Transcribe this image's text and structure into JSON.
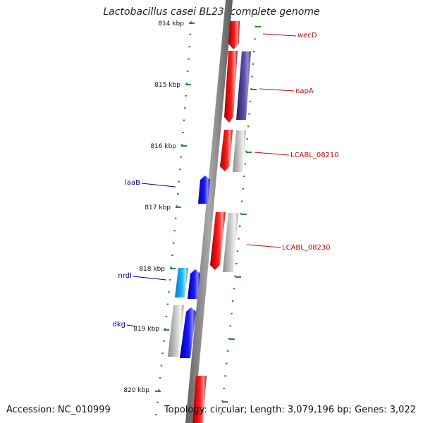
{
  "title": "Lactobacillus casei BL23, complete genome",
  "accession": "Accession: NC_010999",
  "topology": "Topology: circular; Length: 3,079,196 bp; Genes: 3,022",
  "kbp_labels": [
    "814 kbp",
    "815 kbp",
    "816 kbp",
    "817 kbp",
    "818 kbp",
    "819 kbp",
    "820 kbp"
  ],
  "colors": {
    "red": "#ee1111",
    "purple": "#4a3f8f",
    "grey": "#b8b8b8",
    "blue": "#1111ee",
    "cyan": "#22aaee",
    "tick": "#2a8a2a",
    "backbone": "#808080"
  },
  "genes": [
    {
      "label": "wecD",
      "color": "red",
      "strand": "plus"
    },
    {
      "label": "napA",
      "color": "red",
      "strand": "plus"
    },
    {
      "label": "LCABL_08210",
      "color": "red",
      "strand": "plus"
    },
    {
      "label": "laaB",
      "color": "blue",
      "strand": "minus"
    },
    {
      "label": "LCABL_08230",
      "color": "red",
      "strand": "plus"
    },
    {
      "label": "nrdI",
      "color": "blue",
      "strand": "minus"
    },
    {
      "label": "dkg",
      "color": "blue",
      "strand": "minus"
    }
  ]
}
